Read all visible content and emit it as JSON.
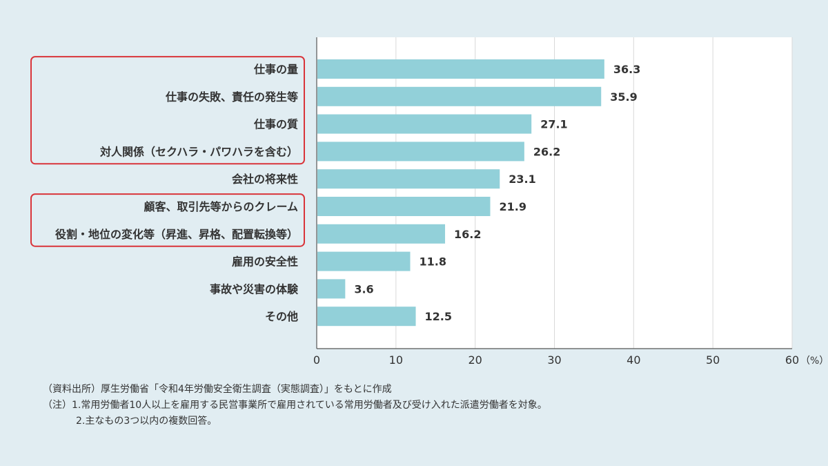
{
  "chart_data": {
    "type": "bar",
    "orientation": "horizontal",
    "categories": [
      "仕事の量",
      "仕事の失敗、責任の発生等",
      "仕事の質",
      "対人関係（セクハラ・パワハラを含む）",
      "会社の将来性",
      "顧客、取引先等からのクレーム",
      "役割・地位の変化等（昇進、昇格、配置転換等）",
      "雇用の安全性",
      "事故や災害の体験",
      "その他"
    ],
    "values": [
      36.3,
      35.9,
      27.1,
      26.2,
      23.1,
      21.9,
      16.2,
      11.8,
      3.6,
      12.5
    ],
    "value_labels": [
      "36.3",
      "35.9",
      "27.1",
      "26.2",
      "23.1",
      "21.9",
      "16.2",
      "11.8",
      "3.6",
      "12.5"
    ],
    "xlim": [
      0,
      60
    ],
    "x_ticks": [
      "0",
      "10",
      "20",
      "30",
      "40",
      "50",
      "60"
    ],
    "x_unit": "（%）",
    "grid": true,
    "highlight_groups": [
      [
        0,
        3
      ],
      [
        5,
        6
      ]
    ],
    "colors": {
      "bar": "#92d0d9",
      "highlight_box": "#d9343a",
      "plot_bg": "#ffffff",
      "page_bg": "#e1edf2",
      "grid": "#d9d9d9",
      "axis": "#555555"
    }
  },
  "notes": {
    "source": "（資料出所）厚生労働省「令和4年労働安全衛生調査（実態調査）」をもとに作成",
    "note1": "（注）1.常用労働者10人以上を雇用する民営事業所で雇用されている常用労働者及び受け入れた派遣労働者を対象。",
    "note2": "2.主なもの3つ以内の複数回答。"
  }
}
